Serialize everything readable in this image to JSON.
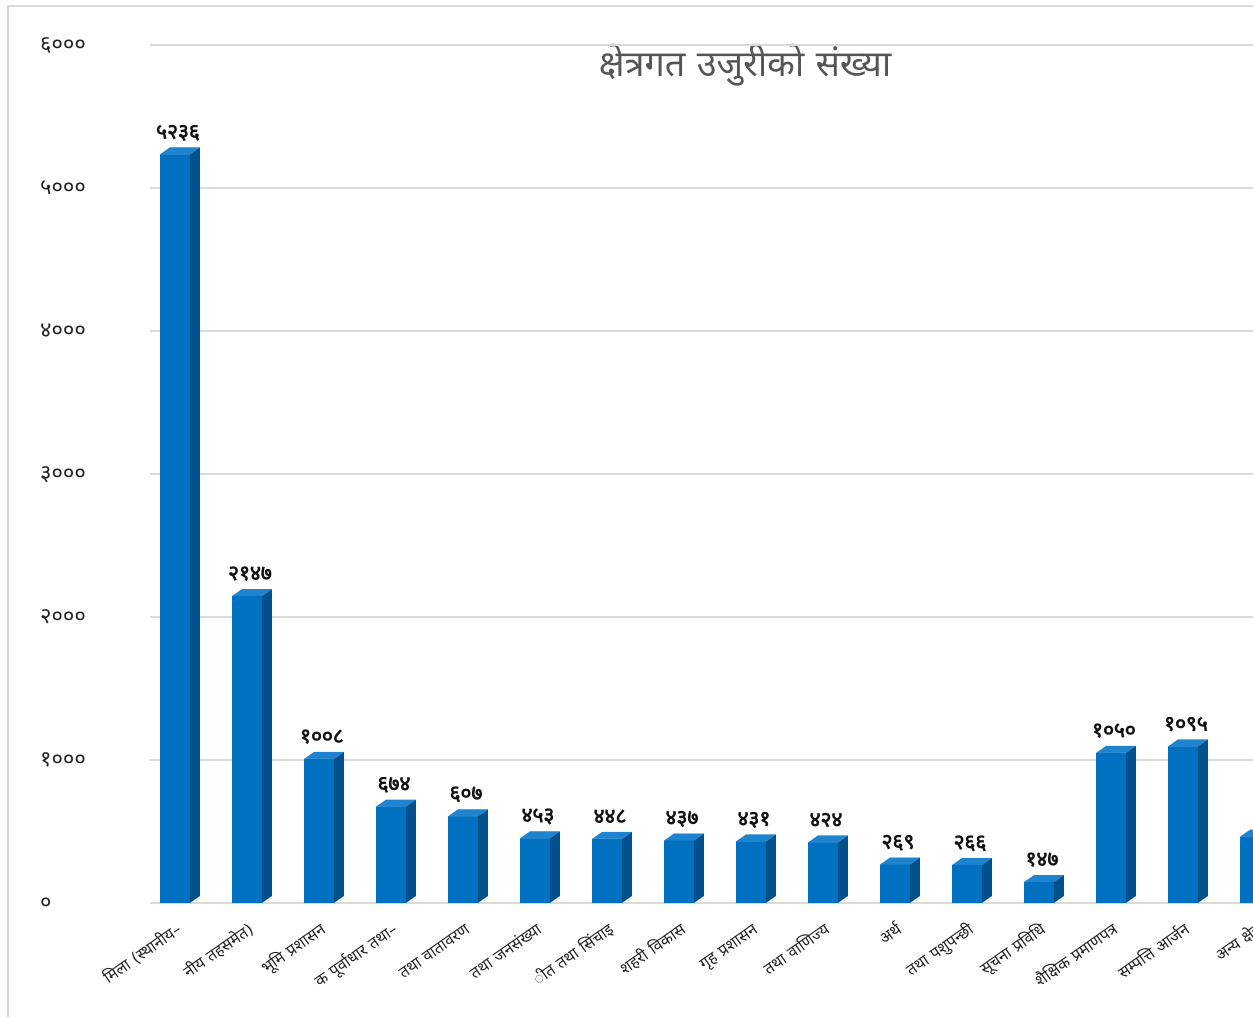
{
  "chart_data": {
    "type": "bar",
    "title": "क्षेत्रगत उजुरीको संख्या",
    "categories": [
      "मिला (स्थानीय–",
      "नीय तहसमेत)",
      "भूमि प्रशासन",
      "क पूर्वाधार तथा–",
      "तथा वातावरण",
      "तथा जनसंख्या",
      "ीत तथा सिंचाइ",
      "शहरी विकास",
      "गृह प्रशासन",
      "तथा वाणिज्य",
      "अर्थ",
      "तथा पशुपन्छी",
      "सूचना प्रविधि",
      "शैक्षिक प्रमाणपत्र",
      "सम्पत्ति आर्जन",
      "अन्य क्षेत्र"
    ],
    "values": [
      5236,
      2147,
      1008,
      674,
      607,
      453,
      448,
      437,
      431,
      424,
      269,
      266,
      147,
      1050,
      1095,
      464
    ],
    "value_labels": [
      "५२३६",
      "२१४७",
      "१००८",
      "६७४",
      "६०७",
      "४५३",
      "४४८",
      "४३७",
      "४३१",
      "४२४",
      "२६९",
      "२६६",
      "१४७",
      "१०५०",
      "१०९५",
      null
    ],
    "color": "#0070c0",
    "ylim": [
      0,
      6000
    ],
    "yticks": [
      {
        "value": 0,
        "label": "०"
      },
      {
        "value": 1000,
        "label": "१०००"
      },
      {
        "value": 2000,
        "label": "२०००"
      },
      {
        "value": 3000,
        "label": "३०००"
      },
      {
        "value": 4000,
        "label": "४०००"
      },
      {
        "value": 5000,
        "label": "५०००"
      },
      {
        "value": 6000,
        "label": "६०००"
      }
    ],
    "grid": true
  }
}
